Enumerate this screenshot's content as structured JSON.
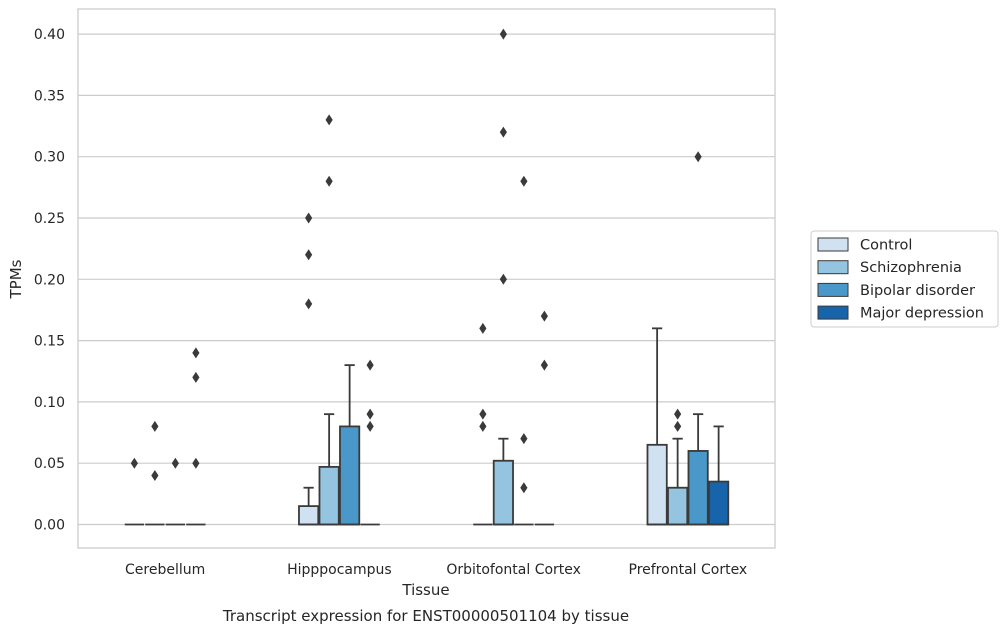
{
  "chart_data": {
    "type": "box",
    "title": "Transcript expression for ENST00000501104 by tissue",
    "xlabel": "Tissue",
    "ylabel": "TPMs",
    "ylim": [
      -0.019,
      0.42
    ],
    "yticks": [
      "0.00",
      "0.05",
      "0.10",
      "0.15",
      "0.20",
      "0.25",
      "0.30",
      "0.35",
      "0.40"
    ],
    "grid": true,
    "legend_position": "right",
    "categories": [
      "Cerebellum",
      "Hipppocampus",
      "Orbitofontal Cortex",
      "Prefrontal Cortex"
    ],
    "series": [
      {
        "name": "Control",
        "color": "#d0e1f2",
        "boxes": [
          {
            "q1": 0,
            "median": 0,
            "q3": 0,
            "whisker_low": 0,
            "whisker_high": 0,
            "outliers": [
              0.05
            ]
          },
          {
            "q1": 0,
            "median": 0,
            "q3": 0.015,
            "whisker_low": 0,
            "whisker_high": 0.03,
            "outliers": [
              0.18,
              0.22,
              0.25
            ]
          },
          {
            "q1": 0,
            "median": 0,
            "q3": 0,
            "whisker_low": 0,
            "whisker_high": 0,
            "outliers": [
              0.08,
              0.09,
              0.16
            ]
          },
          {
            "q1": 0,
            "median": 0,
            "q3": 0.065,
            "whisker_low": 0,
            "whisker_high": 0.16,
            "outliers": []
          }
        ]
      },
      {
        "name": "Schizophrenia",
        "color": "#94c4df",
        "boxes": [
          {
            "q1": 0,
            "median": 0,
            "q3": 0,
            "whisker_low": 0,
            "whisker_high": 0,
            "outliers": [
              0.04,
              0.08
            ]
          },
          {
            "q1": 0,
            "median": 0,
            "q3": 0.047,
            "whisker_low": 0,
            "whisker_high": 0.09,
            "outliers": [
              0.28,
              0.33
            ]
          },
          {
            "q1": 0,
            "median": 0,
            "q3": 0.052,
            "whisker_low": 0,
            "whisker_high": 0.07,
            "outliers": [
              0.2,
              0.32,
              0.4
            ]
          },
          {
            "q1": 0,
            "median": 0,
            "q3": 0.03,
            "whisker_low": 0,
            "whisker_high": 0.07,
            "outliers": [
              0.08,
              0.09
            ]
          }
        ]
      },
      {
        "name": "Bipolar disorder",
        "color": "#4a98c9",
        "boxes": [
          {
            "q1": 0,
            "median": 0,
            "q3": 0,
            "whisker_low": 0,
            "whisker_high": 0,
            "outliers": [
              0.05
            ]
          },
          {
            "q1": 0,
            "median": 0,
            "q3": 0.08,
            "whisker_low": 0,
            "whisker_high": 0.13,
            "outliers": []
          },
          {
            "q1": 0,
            "median": 0,
            "q3": 0,
            "whisker_low": 0,
            "whisker_high": 0,
            "outliers": [
              0.03,
              0.07,
              0.28
            ]
          },
          {
            "q1": 0,
            "median": 0,
            "q3": 0.06,
            "whisker_low": 0,
            "whisker_high": 0.09,
            "outliers": [
              0.3
            ]
          }
        ]
      },
      {
        "name": "Major depression",
        "color": "#1764ab",
        "boxes": [
          {
            "q1": 0,
            "median": 0,
            "q3": 0,
            "whisker_low": 0,
            "whisker_high": 0,
            "outliers": [
              0.05,
              0.12,
              0.14
            ]
          },
          {
            "q1": 0,
            "median": 0,
            "q3": 0,
            "whisker_low": 0,
            "whisker_high": 0,
            "outliers": [
              0.08,
              0.09,
              0.13
            ]
          },
          {
            "q1": 0,
            "median": 0,
            "q3": 0,
            "whisker_low": 0,
            "whisker_high": 0,
            "outliers": [
              0.13,
              0.17
            ]
          },
          {
            "q1": 0,
            "median": 0,
            "q3": 0.035,
            "whisker_low": 0,
            "whisker_high": 0.08,
            "outliers": []
          }
        ]
      }
    ]
  }
}
